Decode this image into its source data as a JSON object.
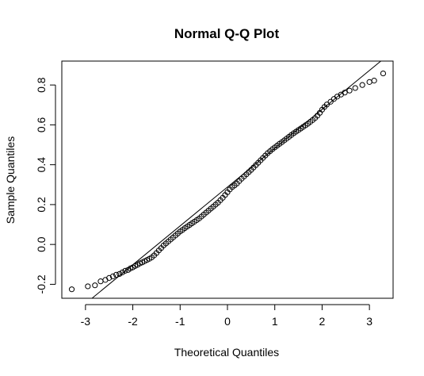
{
  "chart_data": {
    "type": "scatter",
    "title": "Normal Q-Q Plot",
    "xlabel": "Theoretical Quantiles",
    "ylabel": "Sample Quantiles",
    "xlim": [
      -3.5,
      3.5
    ],
    "ylim": [
      -0.27,
      0.92
    ],
    "x_ticks": [
      -3,
      -2,
      -1,
      0,
      1,
      2,
      3
    ],
    "x_tick_labels": [
      "-3",
      "-2",
      "-1",
      "0",
      "1",
      "2",
      "3"
    ],
    "y_ticks": [
      -0.2,
      0.0,
      0.2,
      0.4,
      0.6,
      0.8
    ],
    "y_tick_labels": [
      "-0.2",
      "0.0",
      "0.2",
      "0.4",
      "0.6",
      "0.8"
    ],
    "grid": false,
    "reference_line": {
      "intercept": 0.288,
      "slope": 0.195
    },
    "series": [
      {
        "marker": "open-circle",
        "color": "#000000",
        "points": [
          [
            -3.29,
            -0.225
          ],
          [
            -2.95,
            -0.21
          ],
          [
            -2.8,
            -0.205
          ],
          [
            -2.68,
            -0.185
          ],
          [
            -2.58,
            -0.178
          ],
          [
            -2.5,
            -0.168
          ],
          [
            -2.42,
            -0.16
          ],
          [
            -2.35,
            -0.152
          ],
          [
            -2.28,
            -0.148
          ],
          [
            -2.22,
            -0.14
          ],
          [
            -2.16,
            -0.132
          ],
          [
            -2.1,
            -0.128
          ],
          [
            -2.05,
            -0.12
          ],
          [
            -2.0,
            -0.115
          ],
          [
            -1.95,
            -0.108
          ],
          [
            -1.9,
            -0.102
          ],
          [
            -1.85,
            -0.095
          ],
          [
            -1.8,
            -0.09
          ],
          [
            -1.75,
            -0.084
          ],
          [
            -1.7,
            -0.078
          ],
          [
            -1.65,
            -0.072
          ],
          [
            -1.6,
            -0.065
          ],
          [
            -1.55,
            -0.055
          ],
          [
            -1.5,
            -0.043
          ],
          [
            -1.45,
            -0.03
          ],
          [
            -1.4,
            -0.018
          ],
          [
            -1.35,
            -0.005
          ],
          [
            -1.3,
            0.005
          ],
          [
            -1.25,
            0.015
          ],
          [
            -1.2,
            0.025
          ],
          [
            -1.15,
            0.035
          ],
          [
            -1.1,
            0.045
          ],
          [
            -1.05,
            0.055
          ],
          [
            -1.0,
            0.065
          ],
          [
            -0.95,
            0.073
          ],
          [
            -0.9,
            0.082
          ],
          [
            -0.85,
            0.09
          ],
          [
            -0.8,
            0.098
          ],
          [
            -0.75,
            0.106
          ],
          [
            -0.7,
            0.114
          ],
          [
            -0.65,
            0.122
          ],
          [
            -0.6,
            0.13
          ],
          [
            -0.55,
            0.14
          ],
          [
            -0.5,
            0.15
          ],
          [
            -0.45,
            0.16
          ],
          [
            -0.4,
            0.17
          ],
          [
            -0.35,
            0.18
          ],
          [
            -0.3,
            0.19
          ],
          [
            -0.25,
            0.2
          ],
          [
            -0.2,
            0.21
          ],
          [
            -0.15,
            0.222
          ],
          [
            -0.1,
            0.234
          ],
          [
            -0.05,
            0.248
          ],
          [
            0.0,
            0.262
          ],
          [
            0.05,
            0.276
          ],
          [
            0.1,
            0.288
          ],
          [
            0.15,
            0.296
          ],
          [
            0.2,
            0.306
          ],
          [
            0.25,
            0.318
          ],
          [
            0.3,
            0.33
          ],
          [
            0.35,
            0.341
          ],
          [
            0.4,
            0.352
          ],
          [
            0.45,
            0.363
          ],
          [
            0.5,
            0.374
          ],
          [
            0.55,
            0.386
          ],
          [
            0.6,
            0.398
          ],
          [
            0.65,
            0.41
          ],
          [
            0.7,
            0.422
          ],
          [
            0.75,
            0.434
          ],
          [
            0.8,
            0.446
          ],
          [
            0.85,
            0.458
          ],
          [
            0.9,
            0.468
          ],
          [
            0.95,
            0.478
          ],
          [
            1.0,
            0.487
          ],
          [
            1.05,
            0.496
          ],
          [
            1.1,
            0.505
          ],
          [
            1.15,
            0.513
          ],
          [
            1.2,
            0.522
          ],
          [
            1.25,
            0.531
          ],
          [
            1.3,
            0.54
          ],
          [
            1.35,
            0.549
          ],
          [
            1.4,
            0.558
          ],
          [
            1.45,
            0.566
          ],
          [
            1.5,
            0.574
          ],
          [
            1.55,
            0.582
          ],
          [
            1.6,
            0.59
          ],
          [
            1.65,
            0.598
          ],
          [
            1.7,
            0.606
          ],
          [
            1.75,
            0.615
          ],
          [
            1.8,
            0.624
          ],
          [
            1.85,
            0.634
          ],
          [
            1.9,
            0.646
          ],
          [
            1.95,
            0.66
          ],
          [
            2.0,
            0.676
          ],
          [
            2.05,
            0.69
          ],
          [
            2.1,
            0.702
          ],
          [
            2.18,
            0.716
          ],
          [
            2.25,
            0.73
          ],
          [
            2.32,
            0.742
          ],
          [
            2.4,
            0.752
          ],
          [
            2.48,
            0.762
          ],
          [
            2.58,
            0.772
          ],
          [
            2.7,
            0.785
          ],
          [
            2.85,
            0.8
          ],
          [
            3.0,
            0.815
          ],
          [
            3.1,
            0.822
          ],
          [
            3.29,
            0.858
          ]
        ]
      }
    ]
  }
}
